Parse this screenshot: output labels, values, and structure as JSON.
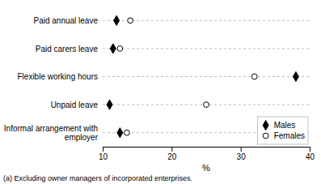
{
  "chart_data": {
    "type": "dot",
    "orientation": "horizontal",
    "categories": [
      "Paid annual leave",
      "Paid carers leave",
      "Flexible working hours",
      "Unpaid leave",
      "Informal arrangement with\nemployer"
    ],
    "series": [
      {
        "name": "Males",
        "color": "black",
        "marker": "diamond",
        "values": [
          12.0,
          11.5,
          38.0,
          11.0,
          12.5
        ]
      },
      {
        "name": "Females",
        "color": "white",
        "marker": "circle",
        "values": [
          14.0,
          12.5,
          32.0,
          25.0,
          13.5
        ]
      }
    ],
    "xlabel": "%",
    "xlim": [
      10,
      40
    ],
    "xticks": [
      10,
      20,
      30,
      40
    ],
    "grid": true,
    "legend": "lower right",
    "annotations": [
      "(a) Excluding owner managers of incorporated enterprises."
    ]
  }
}
